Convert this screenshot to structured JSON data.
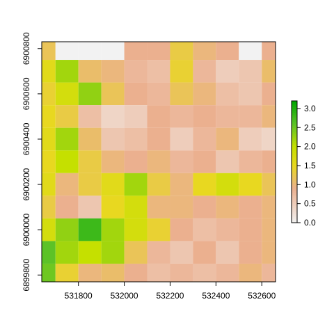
{
  "chart_data": {
    "type": "heatmap",
    "title": "",
    "xlabel": "",
    "ylabel": "",
    "xlim": [
      531640,
      532660
    ],
    "ylim": [
      6899770,
      6900830
    ],
    "x_ticks": [
      531800,
      532000,
      532200,
      532400,
      532600
    ],
    "y_ticks": [
      6899800,
      6900000,
      6900200,
      6900400,
      6900600,
      6900800
    ],
    "grid": false,
    "nodata_color": "#f2f2f2",
    "colorbar": {
      "min": 0.0,
      "max": 3.2,
      "ticks": [
        0.0,
        0.5,
        1.0,
        1.5,
        2.0,
        2.5,
        3.0
      ],
      "tick_labels": [
        "0.0",
        "0.5",
        "1.0",
        "1.5",
        "2.0",
        "2.5",
        "3.0"
      ],
      "colors": [
        {
          "value": 0.0,
          "color": "#f2f2f2"
        },
        {
          "value": 0.9,
          "color": "#ebb08f"
        },
        {
          "value": 1.5,
          "color": "#e8d820"
        },
        {
          "value": 2.0,
          "color": "#c5e000"
        },
        {
          "value": 2.6,
          "color": "#5cc227"
        },
        {
          "value": 3.2,
          "color": "#00a600"
        }
      ]
    },
    "grid_x": [
      531650,
      531750,
      531850,
      531950,
      532050,
      532150,
      532250,
      532350,
      532450,
      532550,
      532650
    ],
    "grid_y": [
      6900800,
      6900700,
      6900600,
      6900500,
      6900400,
      6900300,
      6900200,
      6900100,
      6900000,
      6899900,
      6899800
    ],
    "values": [
      [
        1.2,
        0.0,
        0.0,
        0.0,
        0.9,
        0.9,
        1.3,
        1.0,
        0.9,
        0.0,
        0.9
      ],
      [
        1.6,
        2.2,
        1.1,
        1.0,
        0.8,
        0.7,
        1.4,
        0.8,
        0.5,
        0.6,
        1.1
      ],
      [
        1.4,
        1.8,
        2.3,
        1.2,
        0.9,
        0.8,
        1.2,
        1.0,
        0.7,
        0.6,
        0.9
      ],
      [
        1.5,
        1.3,
        0.7,
        0.4,
        0.5,
        0.9,
        0.8,
        0.9,
        0.8,
        0.8,
        1.0
      ],
      [
        1.6,
        2.2,
        1.1,
        0.6,
        0.7,
        0.9,
        0.5,
        0.8,
        1.0,
        0.5,
        0.4
      ],
      [
        1.5,
        2.0,
        1.3,
        1.0,
        0.9,
        1.0,
        0.8,
        0.9,
        0.6,
        0.8,
        0.9
      ],
      [
        1.6,
        1.0,
        1.3,
        1.6,
        2.2,
        1.3,
        1.0,
        1.5,
        1.8,
        1.5,
        1.2
      ],
      [
        1.3,
        0.9,
        0.6,
        1.5,
        1.8,
        1.0,
        1.0,
        0.9,
        1.0,
        0.9,
        1.0
      ],
      [
        1.8,
        2.3,
        2.8,
        2.2,
        1.8,
        1.4,
        0.9,
        0.7,
        0.8,
        0.9,
        1.0
      ],
      [
        2.6,
        2.2,
        2.0,
        2.2,
        1.2,
        0.8,
        0.6,
        0.9,
        0.6,
        0.9,
        1.0
      ],
      [
        2.5,
        1.4,
        1.0,
        1.1,
        0.9,
        0.7,
        0.8,
        0.7,
        0.8,
        1.0,
        0.8
      ]
    ]
  }
}
